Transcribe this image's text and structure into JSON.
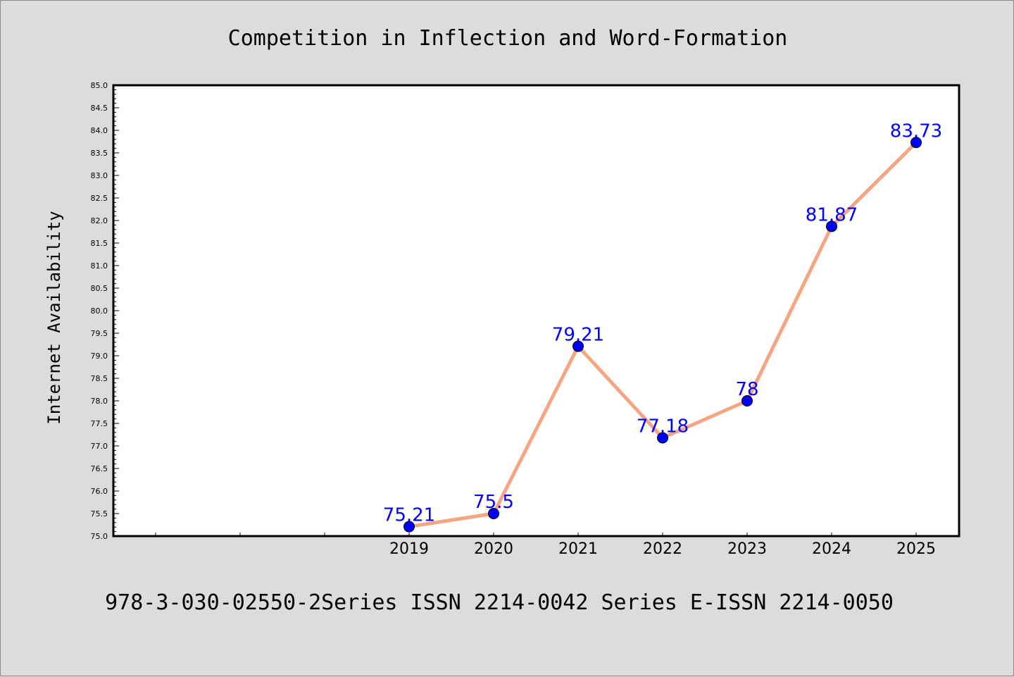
{
  "chart_data": {
    "type": "line",
    "title": "Competition in Inflection and Word-Formation",
    "ylabel": "Internet Availability",
    "xlabel": "",
    "footer": "978-3-030-02550-2Series ISSN 2214-0042 Series E-ISSN 2214-0050",
    "x": [
      "2019",
      "2020",
      "2021",
      "2022",
      "2023",
      "2024",
      "2025"
    ],
    "series": [
      {
        "values": [
          75.21,
          75.5,
          79.21,
          77.18,
          78,
          81.87,
          83.73
        ],
        "labels": [
          "75.21",
          "75.5",
          "79.21",
          "77.18",
          "78",
          "81.87",
          "83.73"
        ]
      }
    ],
    "ylim": [
      75.0,
      85.0
    ],
    "yticks": [
      "75.0",
      "75.5",
      "76.0",
      "76.5",
      "77.0",
      "77.5",
      "78.0",
      "78.5",
      "79.0",
      "79.5",
      "80.0",
      "80.5",
      "81.0",
      "81.5",
      "82.0",
      "82.5",
      "83.0",
      "83.5",
      "84.0",
      "84.5",
      "85.0"
    ],
    "line_color": "#f4a582",
    "marker_color": "#0000ff",
    "label_color": "#0000ff",
    "background": "#dcdcdc",
    "plot_background": "#ffffff",
    "grid": false,
    "legend": "none"
  }
}
